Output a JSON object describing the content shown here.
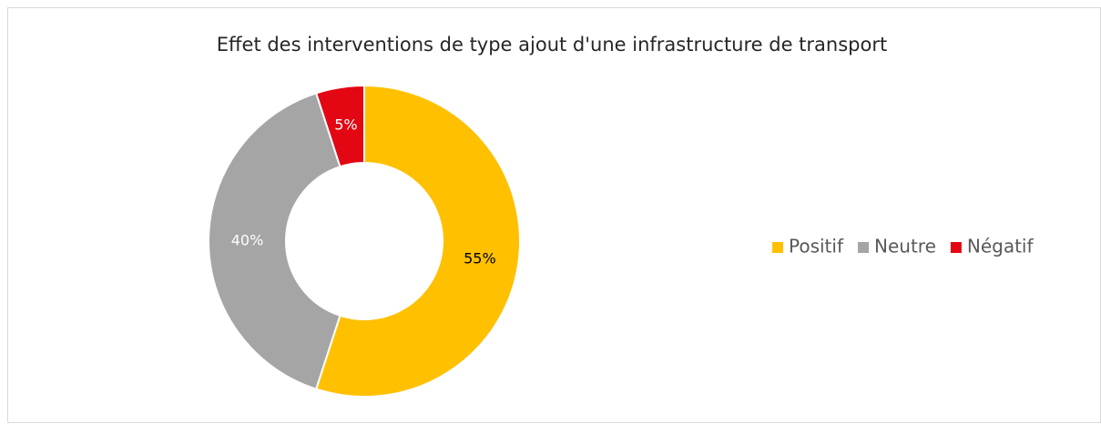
{
  "chart_data": {
    "type": "donut",
    "title": "Effet des interventions de type ajout d'une infrastructure de transport",
    "categories": [
      "Positif",
      "Neutre",
      "Négatif"
    ],
    "values": [
      55,
      40,
      5
    ],
    "value_labels": [
      "55%",
      "40%",
      "5%"
    ],
    "colors": [
      "#FFC000",
      "#A5A5A5",
      "#E30613"
    ],
    "legend": "right"
  }
}
